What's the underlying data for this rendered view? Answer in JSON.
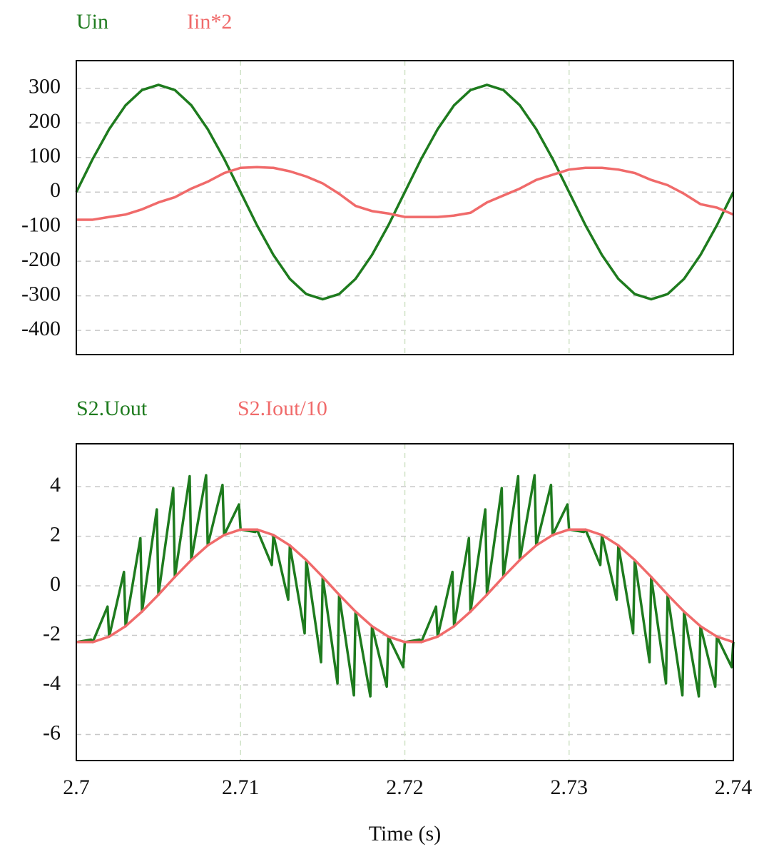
{
  "chart_data": [
    {
      "type": "line",
      "x": [
        2.7,
        2.701,
        2.702,
        2.703,
        2.704,
        2.705,
        2.706,
        2.707,
        2.708,
        2.709,
        2.71,
        2.711,
        2.712,
        2.713,
        2.714,
        2.715,
        2.716,
        2.717,
        2.718,
        2.719,
        2.72,
        2.721,
        2.722,
        2.723,
        2.724,
        2.725,
        2.726,
        2.727,
        2.728,
        2.729,
        2.73,
        2.731,
        2.732,
        2.733,
        2.734,
        2.735,
        2.736,
        2.737,
        2.738,
        2.739,
        2.74
      ],
      "series": [
        {
          "name": "Uin",
          "color": "#1e7b1e",
          "values": [
            0,
            96,
            182,
            251,
            295,
            310,
            295,
            251,
            182,
            96,
            0,
            -96,
            -182,
            -251,
            -295,
            -310,
            -295,
            -251,
            -182,
            -96,
            0,
            96,
            182,
            251,
            295,
            310,
            295,
            251,
            182,
            96,
            0,
            -96,
            -182,
            -251,
            -295,
            -310,
            -295,
            -251,
            -182,
            -96,
            0
          ]
        },
        {
          "name": "Iin*2",
          "color": "#f06a6a",
          "values": [
            -80,
            -80,
            -72,
            -65,
            -50,
            -30,
            -15,
            10,
            30,
            55,
            70,
            72,
            70,
            60,
            45,
            25,
            -5,
            -40,
            -55,
            -62,
            -72,
            -72,
            -72,
            -68,
            -60,
            -30,
            -10,
            10,
            35,
            50,
            65,
            70,
            70,
            65,
            55,
            35,
            20,
            -5,
            -35,
            -45,
            -65
          ]
        }
      ],
      "xlim": [
        2.7,
        2.74
      ],
      "xticks": [
        2.7,
        2.71,
        2.72,
        2.73,
        2.74
      ],
      "ylim": [
        -470,
        380
      ],
      "yticks": [
        300,
        200,
        100,
        0,
        -100,
        -200,
        -300,
        -400
      ],
      "grid": true
    },
    {
      "type": "line",
      "series": [
        {
          "name": "S2.Uout",
          "color": "#1e7b1e",
          "x": [
            2.7,
            2.7009,
            2.701,
            2.7019,
            2.702,
            2.7029,
            2.703,
            2.7039,
            2.704,
            2.7049,
            2.705,
            2.7059,
            2.706,
            2.7069,
            2.707,
            2.7079,
            2.708,
            2.7089,
            2.709,
            2.7099,
            2.71,
            2.7109,
            2.711,
            2.7119,
            2.712,
            2.7129,
            2.713,
            2.7139,
            2.714,
            2.7149,
            2.715,
            2.7159,
            2.716,
            2.7169,
            2.717,
            2.7179,
            2.718,
            2.7189,
            2.719,
            2.7199,
            2.72,
            2.7209,
            2.721,
            2.7219,
            2.722,
            2.7229,
            2.723,
            2.7239,
            2.724,
            2.7249,
            2.725,
            2.7259,
            2.726,
            2.7269,
            2.727,
            2.7279,
            2.728,
            2.7289,
            2.729,
            2.7299,
            2.73,
            2.7309,
            2.731,
            2.7319,
            2.732,
            2.7329,
            2.733,
            2.7339,
            2.734,
            2.7349,
            2.735,
            2.7359,
            2.736,
            2.7369,
            2.737,
            2.7379,
            2.738,
            2.7389,
            2.739,
            2.7399,
            2.74
          ],
          "values": [
            -2.27,
            -2.17,
            -2.27,
            -0.84,
            -2.05,
            0.56,
            -1.63,
            1.92,
            -1.04,
            3.08,
            -0.36,
            3.94,
            0.36,
            4.42,
            1.04,
            4.46,
            1.63,
            4.07,
            2.05,
            3.28,
            2.27,
            2.17,
            2.27,
            0.84,
            2.05,
            -0.56,
            1.63,
            -1.92,
            1.04,
            -3.08,
            0.36,
            -3.94,
            -0.36,
            -4.42,
            -1.04,
            -4.46,
            -1.63,
            -4.07,
            -2.05,
            -3.28,
            -2.27,
            -2.17,
            -2.27,
            -0.84,
            -2.05,
            0.56,
            -1.63,
            1.92,
            -1.04,
            3.08,
            -0.36,
            3.94,
            0.36,
            4.42,
            1.04,
            4.46,
            1.63,
            4.07,
            2.05,
            3.28,
            2.27,
            2.17,
            2.27,
            0.84,
            2.05,
            -0.56,
            1.63,
            -1.92,
            1.04,
            -3.08,
            0.36,
            -3.94,
            -0.36,
            -4.42,
            -1.04,
            -4.46,
            -1.63,
            -4.07,
            -2.05,
            -3.28,
            -2.27
          ]
        },
        {
          "name": "S2.Iout/10",
          "color": "#f06a6a",
          "x": [
            2.7,
            2.701,
            2.702,
            2.703,
            2.704,
            2.705,
            2.706,
            2.707,
            2.708,
            2.709,
            2.71,
            2.711,
            2.712,
            2.713,
            2.714,
            2.715,
            2.716,
            2.717,
            2.718,
            2.719,
            2.72,
            2.721,
            2.722,
            2.723,
            2.724,
            2.725,
            2.726,
            2.727,
            2.728,
            2.729,
            2.73,
            2.731,
            2.732,
            2.733,
            2.734,
            2.735,
            2.736,
            2.737,
            2.738,
            2.739,
            2.74
          ],
          "values": [
            -2.27,
            -2.27,
            -2.05,
            -1.63,
            -1.04,
            -0.36,
            0.36,
            1.04,
            1.63,
            2.05,
            2.27,
            2.27,
            2.05,
            1.63,
            1.04,
            0.36,
            -0.36,
            -1.04,
            -1.63,
            -2.05,
            -2.27,
            -2.27,
            -2.05,
            -1.63,
            -1.04,
            -0.36,
            0.36,
            1.04,
            1.63,
            2.05,
            2.27,
            2.27,
            2.05,
            1.63,
            1.04,
            0.36,
            -0.36,
            -1.04,
            -1.63,
            -2.05,
            -2.27
          ]
        }
      ],
      "xlim": [
        2.7,
        2.74
      ],
      "xticks": [
        2.7,
        2.71,
        2.72,
        2.73,
        2.74
      ],
      "ylim": [
        -7.05,
        5.73
      ],
      "yticks": [
        4,
        2,
        0,
        -2,
        -4,
        -6
      ],
      "xlabel": "Time (s)",
      "grid": true
    }
  ]
}
